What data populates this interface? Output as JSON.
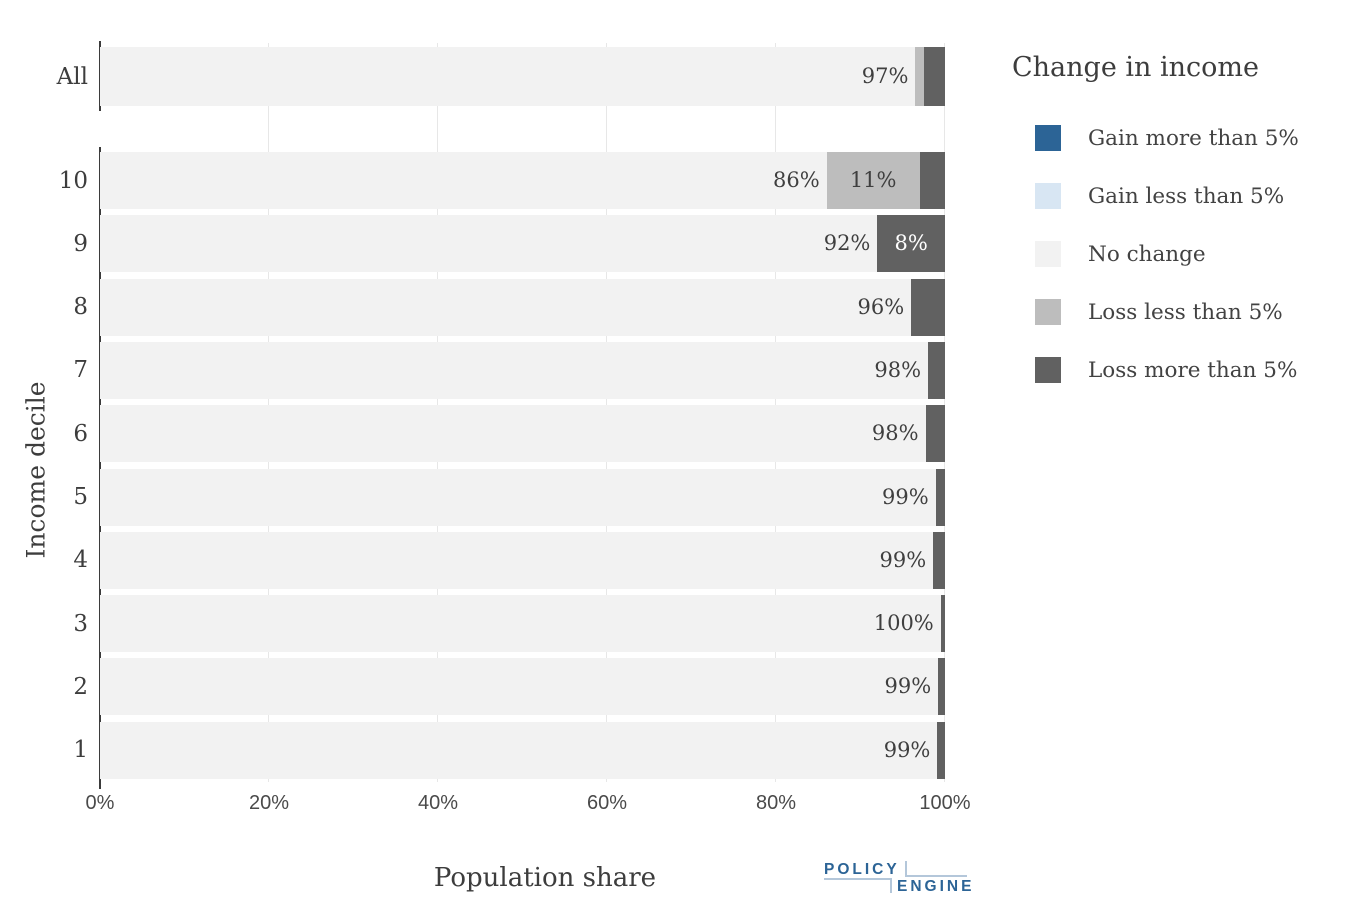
{
  "legend": {
    "title": "Change in income",
    "entries": [
      {
        "key": "gain_more",
        "label": "Gain more than 5%",
        "color": "#2C6496"
      },
      {
        "key": "gain_less",
        "label": "Gain less than 5%",
        "color": "#D8E6F3"
      },
      {
        "key": "no_change",
        "label": "No change",
        "color": "#F2F2F2"
      },
      {
        "key": "loss_less",
        "label": "Loss less than 5%",
        "color": "#BDBDBD"
      },
      {
        "key": "loss_more",
        "label": "Loss more than 5%",
        "color": "#616161"
      }
    ]
  },
  "axes": {
    "x_title": "Population share",
    "y_title": "Income decile",
    "x_ticks": [
      {
        "label": "0%",
        "pct": 0
      },
      {
        "label": "20%",
        "pct": 20
      },
      {
        "label": "40%",
        "pct": 40
      },
      {
        "label": "60%",
        "pct": 60
      },
      {
        "label": "80%",
        "pct": 80
      },
      {
        "label": "100%",
        "pct": 100
      }
    ]
  },
  "chart_data": {
    "type": "bar",
    "orientation": "horizontal",
    "stacked": true,
    "xlabel": "Population share",
    "ylabel": "Income decile",
    "xlim": [
      0,
      100
    ],
    "x_tick_labels": [
      "0%",
      "20%",
      "40%",
      "60%",
      "80%",
      "100%"
    ],
    "legend_title": "Change in income",
    "legend_position": "right",
    "grid": "vertical-light",
    "categories": [
      "All",
      "10",
      "9",
      "8",
      "7",
      "6",
      "5",
      "4",
      "3",
      "2",
      "1"
    ],
    "series": [
      {
        "key": "gain_more",
        "name": "Gain more than 5%",
        "color": "#2C6496",
        "values": [
          0,
          0,
          0,
          0,
          0,
          0,
          0,
          0,
          0,
          0,
          0
        ]
      },
      {
        "key": "gain_less",
        "name": "Gain less than 5%",
        "color": "#D8E6F3",
        "values": [
          0,
          0,
          0,
          0,
          0,
          0,
          0,
          0,
          0,
          0,
          0
        ]
      },
      {
        "key": "no_change",
        "name": "No change",
        "color": "#F2F2F2",
        "values": [
          96.5,
          86,
          92,
          96,
          98,
          97.7,
          98.9,
          98.6,
          99.5,
          99.2,
          99.1
        ]
      },
      {
        "key": "loss_less",
        "name": "Loss less than 5%",
        "color": "#BDBDBD",
        "values": [
          1,
          11,
          0,
          0,
          0,
          0,
          0,
          0,
          0,
          0,
          0
        ]
      },
      {
        "key": "loss_more",
        "name": "Loss more than 5%",
        "color": "#616161",
        "values": [
          2.5,
          3,
          8,
          4,
          2,
          2.3,
          1.1,
          1.4,
          0.5,
          0.8,
          0.9
        ]
      }
    ],
    "bar_labels": [
      {
        "no_change": "97%"
      },
      {
        "no_change": "86%",
        "loss_less": "11%"
      },
      {
        "no_change": "92%",
        "loss_more": "8%"
      },
      {
        "no_change": "96%"
      },
      {
        "no_change": "98%"
      },
      {
        "no_change": "98%"
      },
      {
        "no_change": "99%"
      },
      {
        "no_change": "99%"
      },
      {
        "no_change": "100%"
      },
      {
        "no_change": "99%"
      },
      {
        "no_change": "99%"
      }
    ]
  },
  "footer": {
    "logo_top": "POLICY",
    "logo_bottom": "ENGINE",
    "logo_color": "#2C6496",
    "logo_accent": "#B4C7DA"
  }
}
